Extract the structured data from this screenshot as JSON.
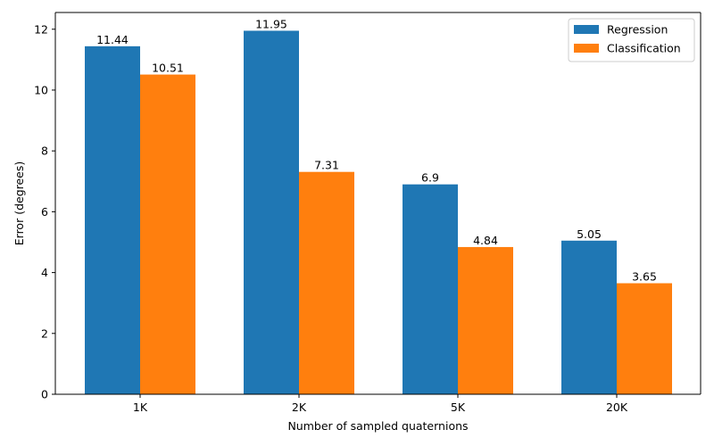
{
  "chart_data": {
    "type": "bar",
    "title": "",
    "xlabel": "Number of sampled quaternions",
    "ylabel": "Error (degrees)",
    "categories": [
      "1K",
      "2K",
      "5K",
      "20K"
    ],
    "ylim": [
      0,
      12.55
    ],
    "yticks": [
      0,
      2,
      4,
      6,
      8,
      10,
      12
    ],
    "series": [
      {
        "name": "Regression",
        "color": "#1f77b4",
        "values": [
          11.44,
          11.95,
          6.9,
          5.05
        ],
        "labels": [
          "11.44",
          "11.95",
          "6.9",
          "5.05"
        ]
      },
      {
        "name": "Classification",
        "color": "#ff7f0e",
        "values": [
          10.51,
          7.31,
          4.84,
          3.65
        ],
        "labels": [
          "10.51",
          "7.31",
          "4.84",
          "3.65"
        ]
      }
    ],
    "legend_position": "top-right",
    "grid": false
  }
}
